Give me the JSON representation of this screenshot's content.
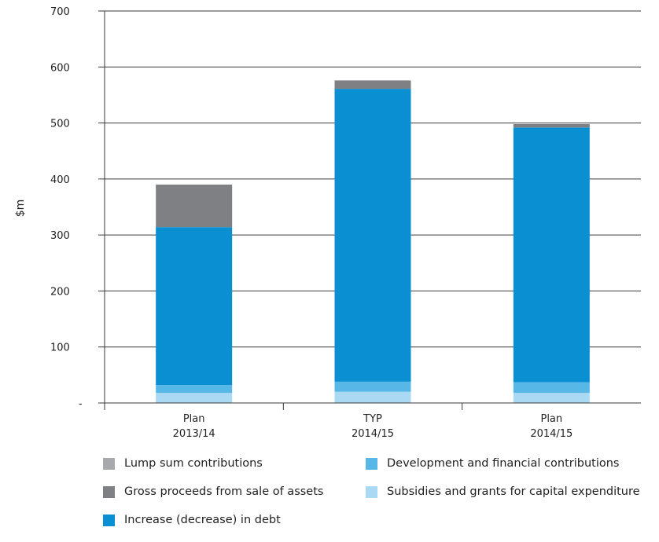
{
  "chart_data": {
    "type": "bar",
    "stacked": true,
    "ylabel": "$m",
    "ylim": [
      0,
      700
    ],
    "yticks": [
      "-",
      "100",
      "200",
      "300",
      "400",
      "500",
      "600",
      "700"
    ],
    "grid": true,
    "legend_position": "bottom",
    "categories": [
      [
        "Plan",
        "2013/14"
      ],
      [
        "TYP",
        "2014/15"
      ],
      [
        "Plan",
        "2014/15"
      ]
    ],
    "series": [
      {
        "name": "Subsidies and grants for capital expenditure",
        "color": "#a9d9f3",
        "values": [
          18,
          20,
          18
        ]
      },
      {
        "name": "Development and financial contributions",
        "color": "#57b8e8",
        "values": [
          14,
          18,
          19
        ]
      },
      {
        "name": "Increase (decrease) in debt",
        "color": "#0a8fd3",
        "values": [
          282,
          523,
          455
        ]
      },
      {
        "name": "Gross proceeds from sale of assets",
        "color": "#7f8083",
        "values": [
          76,
          15,
          6
        ]
      },
      {
        "name": "Lump sum contributions",
        "color": "#a7a9ac",
        "values": [
          0,
          0,
          0
        ]
      }
    ]
  },
  "legend": [
    {
      "label": "Lump sum contributions",
      "color": "#a7a9ac"
    },
    {
      "label": "Development and financial contributions",
      "color": "#57b8e8"
    },
    {
      "label": "Gross proceeds from sale of assets",
      "color": "#7f8083"
    },
    {
      "label": "Subsidies and grants for capital expenditure",
      "color": "#a9d9f3"
    },
    {
      "label": "Increase (decrease) in debt",
      "color": "#0a8fd3"
    }
  ]
}
